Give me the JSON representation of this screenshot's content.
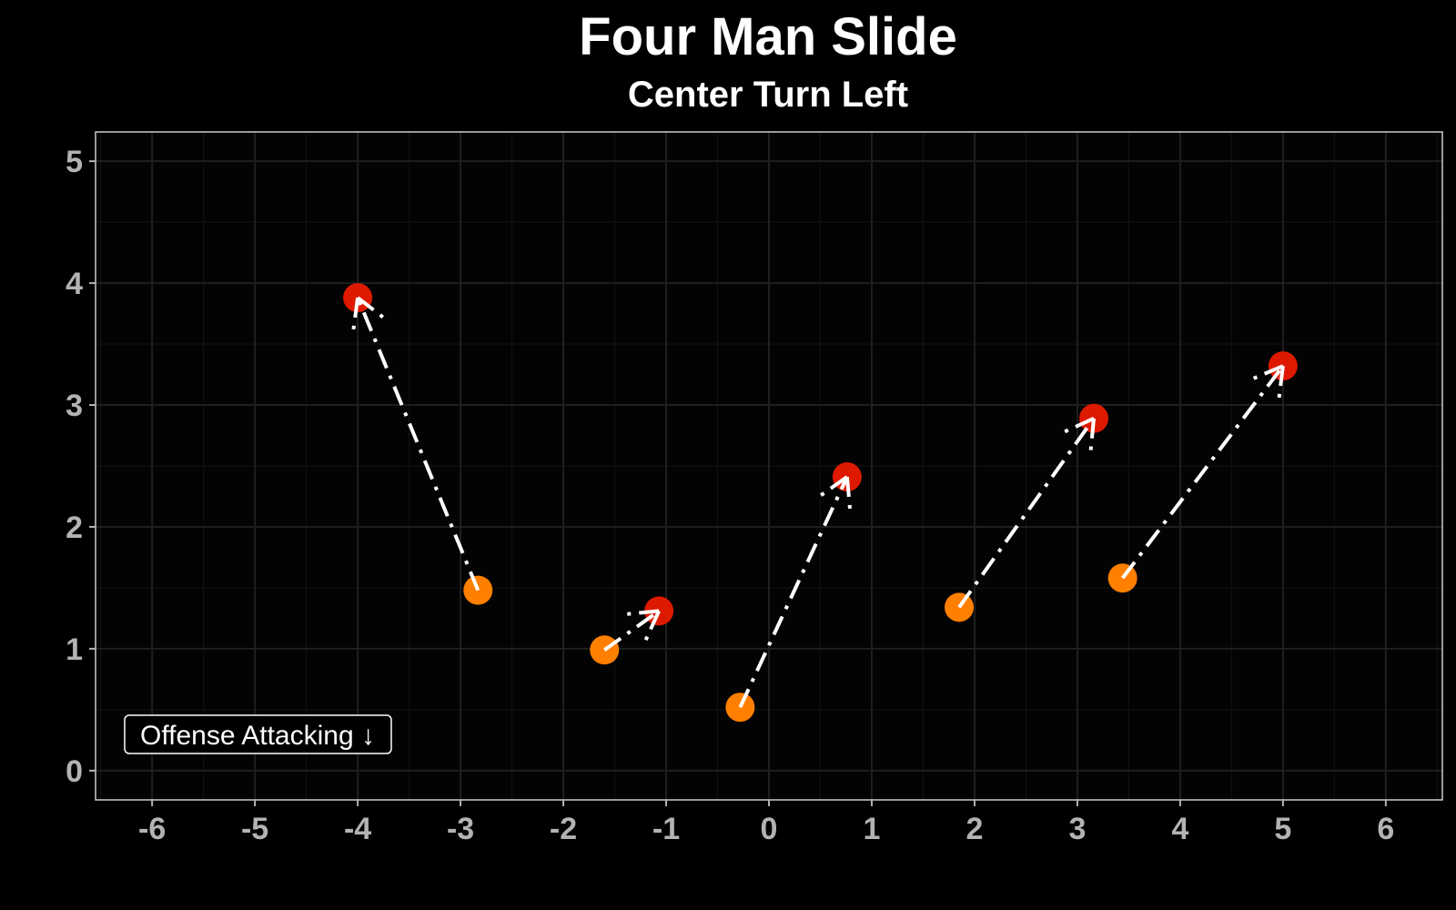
{
  "chart_data": {
    "type": "scatter",
    "title": "Four Man Slide",
    "subtitle": "Center Turn Left",
    "xlabel": "",
    "ylabel": "",
    "xlim": [
      -6.55,
      6.55
    ],
    "ylim": [
      -0.24,
      5.24
    ],
    "x_ticks": [
      "-6",
      "-5",
      "-4",
      "-3",
      "-2",
      "-1",
      "0",
      "1",
      "2",
      "3",
      "4",
      "5",
      "6"
    ],
    "y_ticks": [
      "0",
      "1",
      "2",
      "3",
      "4",
      "5"
    ],
    "grid": true,
    "annotation": "Offense Attacking ↓",
    "colors": {
      "background": "#000000",
      "panel": "#030303",
      "grid_major": "#1f1f1f",
      "grid_minor": "#111111",
      "border": "#cccccc",
      "tick_text": "#b3b3b3",
      "start_point": "#ff7f00",
      "end_point": "#dd1a00",
      "arrow": "#ffffff"
    },
    "moves": [
      {
        "x": -2.83,
        "y": 1.48,
        "xend": -4.0,
        "yend": 3.88
      },
      {
        "x": -1.6,
        "y": 0.99,
        "xend": -1.07,
        "yend": 1.31
      },
      {
        "x": -0.28,
        "y": 0.52,
        "xend": 0.76,
        "yend": 2.41
      },
      {
        "x": 1.85,
        "y": 1.34,
        "xend": 3.16,
        "yend": 2.89
      },
      {
        "x": 3.44,
        "y": 1.58,
        "xend": 5.0,
        "yend": 3.32
      }
    ]
  }
}
